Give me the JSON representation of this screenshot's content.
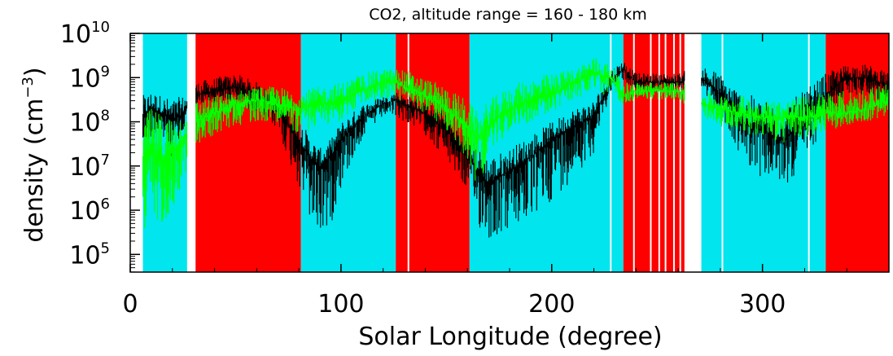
{
  "chart_data": {
    "type": "scatter",
    "title": "CO2, altitude range = 160 - 180 km",
    "xlabel": "Solar Longitude (degree)",
    "ylabel_main": "density (cm",
    "ylabel_sup": "−3",
    "ylabel_close": ")",
    "xlim": [
      0,
      360
    ],
    "ylim_log10": [
      4.6,
      10
    ],
    "y_scale": "log",
    "x_ticks": [
      {
        "value": 0,
        "label": "0"
      },
      {
        "value": 100,
        "label": "100"
      },
      {
        "value": 200,
        "label": "200"
      },
      {
        "value": 300,
        "label": "300"
      }
    ],
    "y_ticks": [
      {
        "exp": 5,
        "base": "10",
        "sup": "5"
      },
      {
        "exp": 6,
        "base": "10",
        "sup": "6"
      },
      {
        "exp": 7,
        "base": "10",
        "sup": "7"
      },
      {
        "exp": 8,
        "base": "10",
        "sup": "8"
      },
      {
        "exp": 9,
        "base": "10",
        "sup": "9"
      },
      {
        "exp": 10,
        "base": "10",
        "sup": "10"
      }
    ],
    "colors": {
      "day": "#00e5ee",
      "night": "#ff0000",
      "gap": "#ffffff",
      "series_a": "#000000",
      "series_b": "#00ff00"
    },
    "regions": [
      {
        "start": 6,
        "end": 27,
        "kind": "day"
      },
      {
        "start": 27,
        "end": 31,
        "kind": "gap"
      },
      {
        "start": 31,
        "end": 81,
        "kind": "night"
      },
      {
        "start": 81,
        "end": 126,
        "kind": "day"
      },
      {
        "start": 126,
        "end": 161,
        "kind": "night"
      },
      {
        "start": 161,
        "end": 234,
        "kind": "day"
      },
      {
        "start": 234,
        "end": 263,
        "kind": "night"
      },
      {
        "start": 263,
        "end": 271,
        "kind": "gap"
      },
      {
        "start": 271,
        "end": 330,
        "kind": "day"
      },
      {
        "start": 330,
        "end": 360,
        "kind": "night"
      }
    ],
    "gap_lines": [
      132,
      228,
      239,
      247,
      251,
      254,
      258,
      261,
      281,
      322
    ],
    "series": [
      {
        "color": "black",
        "x": [
          6,
          10,
          15,
          20,
          25,
          31,
          40,
          50,
          60,
          70,
          80,
          85,
          90,
          95,
          100,
          110,
          120,
          126,
          130,
          140,
          150,
          160,
          165,
          170,
          180,
          190,
          200,
          210,
          220,
          228,
          234,
          240,
          250,
          260,
          271,
          280,
          290,
          300,
          310,
          320,
          330,
          340,
          350,
          360
        ],
        "log_mid": [
          8.1,
          8.3,
          8.2,
          8.0,
          8.2,
          8.6,
          8.7,
          8.8,
          8.6,
          8.3,
          7.6,
          7.2,
          7.0,
          7.2,
          7.6,
          8.1,
          8.4,
          8.5,
          8.4,
          8.2,
          7.8,
          7.2,
          6.9,
          6.6,
          6.9,
          7.2,
          7.6,
          7.9,
          8.1,
          8.9,
          9.2,
          8.9,
          8.9,
          8.9,
          9.0,
          8.6,
          8.0,
          7.8,
          7.6,
          8.0,
          8.6,
          9.0,
          9.0,
          8.8
        ],
        "log_low": [
          7.2,
          7.6,
          7.5,
          7.2,
          7.5,
          8.3,
          8.4,
          8.4,
          8.2,
          7.8,
          6.5,
          5.7,
          5.3,
          5.6,
          6.5,
          7.6,
          8.1,
          8.1,
          8.0,
          7.7,
          7.1,
          6.4,
          5.6,
          5.3,
          5.5,
          5.7,
          6.2,
          6.7,
          7.3,
          8.7,
          8.9,
          8.7,
          8.7,
          8.7,
          8.7,
          8.0,
          7.2,
          6.7,
          6.5,
          7.0,
          8.0,
          8.6,
          8.6,
          8.4
        ],
        "log_high": [
          8.6,
          8.7,
          8.6,
          8.5,
          8.6,
          8.9,
          9.0,
          9.1,
          8.9,
          8.6,
          8.1,
          7.7,
          7.4,
          7.6,
          8.0,
          8.4,
          8.6,
          8.7,
          8.6,
          8.5,
          8.2,
          7.8,
          7.4,
          7.2,
          7.4,
          7.7,
          8.0,
          8.3,
          8.5,
          9.2,
          9.4,
          9.1,
          9.1,
          9.1,
          9.3,
          9.1,
          8.7,
          8.5,
          8.4,
          8.7,
          9.1,
          9.3,
          9.3,
          9.1
        ]
      },
      {
        "color": "green",
        "x": [
          6,
          10,
          15,
          20,
          25,
          31,
          40,
          50,
          60,
          70,
          80,
          90,
          100,
          110,
          120,
          126,
          130,
          140,
          150,
          160,
          165,
          170,
          180,
          190,
          200,
          210,
          220,
          228,
          234,
          240,
          250,
          260,
          271,
          280,
          290,
          300,
          310,
          320,
          330,
          340,
          350,
          360
        ],
        "log_mid": [
          7.2,
          7.3,
          7.1,
          7.3,
          7.6,
          8.0,
          8.2,
          8.4,
          8.5,
          8.4,
          8.3,
          8.4,
          8.5,
          8.7,
          8.9,
          8.9,
          8.8,
          8.6,
          8.3,
          7.9,
          7.6,
          7.9,
          8.3,
          8.5,
          8.6,
          8.9,
          9.1,
          9.0,
          8.6,
          8.7,
          8.7,
          8.7,
          8.4,
          8.3,
          8.2,
          8.1,
          8.1,
          8.1,
          8.2,
          8.2,
          8.3,
          8.5
        ],
        "log_low": [
          4.9,
          5.4,
          5.7,
          6.0,
          6.6,
          7.4,
          7.7,
          7.9,
          8.0,
          8.0,
          7.7,
          7.9,
          8.0,
          8.4,
          8.5,
          8.5,
          8.4,
          8.2,
          7.8,
          7.1,
          6.5,
          7.2,
          7.8,
          8.0,
          8.2,
          8.5,
          8.6,
          8.6,
          8.4,
          8.5,
          8.5,
          8.5,
          8.1,
          7.9,
          7.8,
          7.6,
          7.5,
          7.6,
          7.8,
          7.9,
          8.0,
          8.1
        ],
        "log_high": [
          8.2,
          8.3,
          8.2,
          8.2,
          8.2,
          8.5,
          8.6,
          8.7,
          8.8,
          8.8,
          8.7,
          8.8,
          8.9,
          9.1,
          9.2,
          9.2,
          9.2,
          9.0,
          8.8,
          8.5,
          8.2,
          8.5,
          8.8,
          9.0,
          9.1,
          9.2,
          9.5,
          9.3,
          8.9,
          8.9,
          8.9,
          8.9,
          8.7,
          8.6,
          8.6,
          8.5,
          8.5,
          8.6,
          8.7,
          8.7,
          8.8,
          8.9
        ]
      }
    ]
  }
}
